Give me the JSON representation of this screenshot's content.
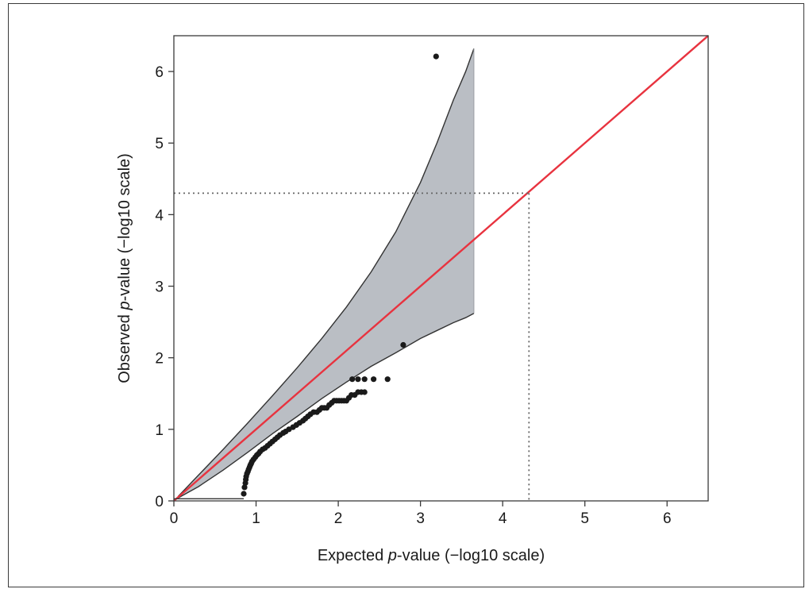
{
  "chart_data": {
    "type": "scatter",
    "title": "",
    "xlabel": {
      "before": "Expected ",
      "italic": "p",
      "after": "-value (−log10 scale)"
    },
    "ylabel": {
      "before": "Observed ",
      "italic": "p",
      "after": "-value (−log10 scale)"
    },
    "xlim": [
      0,
      6.5
    ],
    "ylim": [
      0,
      6.5
    ],
    "x_ticks": [
      "0",
      "1",
      "2",
      "3",
      "4",
      "5",
      "6"
    ],
    "y_ticks": [
      "0",
      "1",
      "2",
      "3",
      "4",
      "5",
      "6"
    ],
    "grid": false,
    "legend": "none",
    "threshold": {
      "x": 4.32,
      "y": 4.3
    },
    "confidence_band": {
      "x": [
        0.05,
        0.3,
        0.6,
        0.9,
        1.2,
        1.5,
        1.8,
        2.1,
        2.4,
        2.7,
        3.0,
        3.2,
        3.4,
        3.55,
        3.65
      ],
      "upper": [
        0.06,
        0.36,
        0.72,
        1.09,
        1.47,
        1.86,
        2.27,
        2.71,
        3.2,
        3.76,
        4.45,
        5.0,
        5.6,
        6.0,
        6.32
      ],
      "lower": [
        0.04,
        0.2,
        0.43,
        0.68,
        0.94,
        1.18,
        1.43,
        1.66,
        1.88,
        2.07,
        2.27,
        2.38,
        2.49,
        2.56,
        2.62
      ]
    },
    "lead_segment": {
      "x": [
        0,
        0.85
      ],
      "y": [
        0.03,
        0.03
      ]
    },
    "series": [
      {
        "points": [
          [
            0.85,
            0.1
          ],
          [
            0.86,
            0.19
          ],
          [
            0.87,
            0.25
          ],
          [
            0.875,
            0.3
          ],
          [
            0.88,
            0.34
          ],
          [
            0.89,
            0.38
          ],
          [
            0.9,
            0.41
          ],
          [
            0.91,
            0.44
          ],
          [
            0.92,
            0.47
          ],
          [
            0.93,
            0.5
          ],
          [
            0.94,
            0.52
          ],
          [
            0.95,
            0.55
          ],
          [
            0.97,
            0.58
          ],
          [
            0.99,
            0.61
          ],
          [
            1.01,
            0.64
          ],
          [
            1.03,
            0.66
          ],
          [
            1.05,
            0.69
          ],
          [
            1.08,
            0.72
          ],
          [
            1.11,
            0.74
          ],
          [
            1.14,
            0.77
          ],
          [
            1.17,
            0.8
          ],
          [
            1.2,
            0.83
          ],
          [
            1.23,
            0.86
          ],
          [
            1.26,
            0.89
          ],
          [
            1.29,
            0.92
          ],
          [
            1.33,
            0.95
          ],
          [
            1.36,
            0.97
          ],
          [
            1.4,
            1.0
          ],
          [
            1.45,
            1.03
          ],
          [
            1.49,
            1.06
          ],
          [
            1.53,
            1.09
          ],
          [
            1.57,
            1.12
          ],
          [
            1.6,
            1.15
          ],
          [
            1.63,
            1.18
          ],
          [
            1.66,
            1.21
          ],
          [
            1.7,
            1.24
          ],
          [
            1.74,
            1.24
          ],
          [
            1.77,
            1.27
          ],
          [
            1.8,
            1.3
          ],
          [
            1.83,
            1.3
          ],
          [
            1.86,
            1.3
          ],
          [
            1.89,
            1.34
          ],
          [
            1.92,
            1.37
          ],
          [
            1.95,
            1.4
          ],
          [
            1.98,
            1.4
          ],
          [
            2.01,
            1.4
          ],
          [
            2.04,
            1.4
          ],
          [
            2.07,
            1.4
          ],
          [
            2.1,
            1.4
          ],
          [
            2.13,
            1.44
          ],
          [
            2.16,
            1.48
          ],
          [
            2.2,
            1.48
          ],
          [
            2.24,
            1.52
          ],
          [
            2.28,
            1.52
          ],
          [
            2.32,
            1.52
          ],
          [
            2.17,
            1.7
          ],
          [
            2.24,
            1.7
          ],
          [
            2.32,
            1.7
          ],
          [
            2.43,
            1.7
          ],
          [
            2.6,
            1.7
          ],
          [
            2.79,
            2.18
          ],
          [
            3.19,
            6.21
          ]
        ]
      }
    ]
  }
}
